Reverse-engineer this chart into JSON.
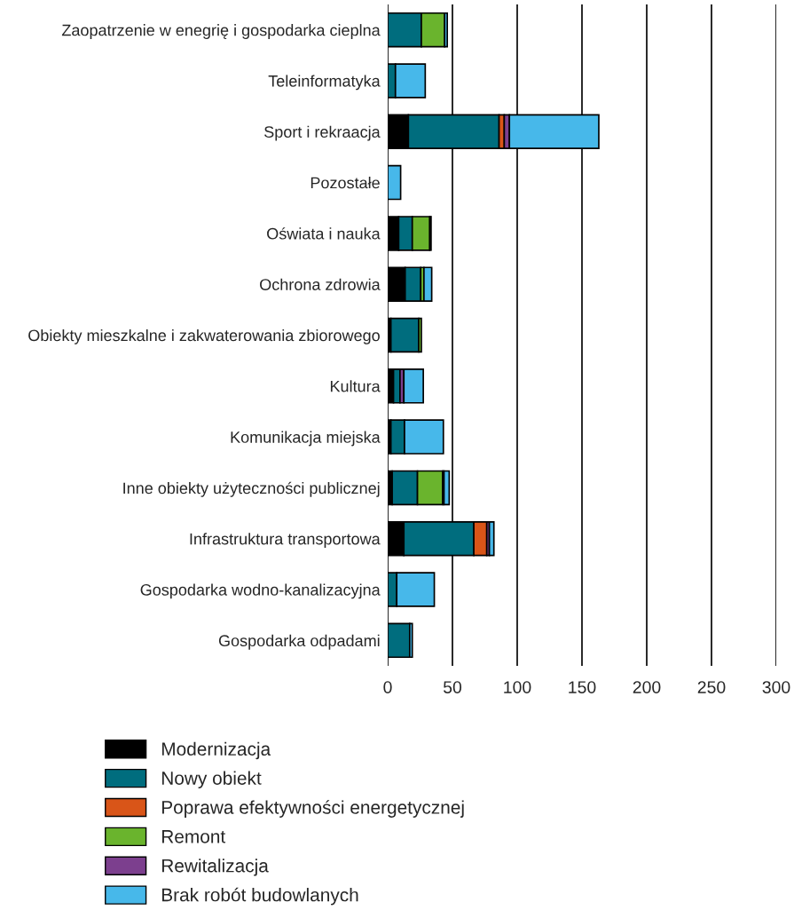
{
  "chart_data": {
    "type": "bar",
    "orientation": "horizontal",
    "stacked": true,
    "categories": [
      "Zaopatrzenie w enegrię i gospodarka cieplna",
      "Teleinformatyka",
      "Sport i rekraacja",
      "Pozostałe",
      "Oświata i nauka",
      "Ochrona zdrowia",
      "Obiekty mieszkalne i zakwaterowania zbiorowego",
      "Kultura",
      "Komunikacja miejska",
      "Inne obiekty użyteczności publicznej",
      "Infrastruktura transportowa",
      "Gospodarka wodno-kanalizacyjna",
      "Gospodarka odpadami"
    ],
    "series": [
      {
        "name": "Modernizacja",
        "color": "#000000",
        "values": [
          null,
          null,
          16,
          null,
          8.5,
          13.5,
          2.5,
          4.5,
          2.5,
          3.5,
          12.5,
          null,
          null
        ]
      },
      {
        "name": "Nowy obiekt",
        "color": "#006d7e",
        "values": [
          26,
          6,
          70,
          null,
          10.5,
          12,
          21.5,
          5,
          10.5,
          19.5,
          54,
          7,
          17
        ]
      },
      {
        "name": "Poprawa efektywności energetycznej",
        "color": "#d95518",
        "values": [
          null,
          null,
          4,
          null,
          null,
          null,
          null,
          null,
          null,
          null,
          10,
          null,
          null
        ]
      },
      {
        "name": "Remont",
        "color": "#6ab42d",
        "values": [
          18,
          null,
          null,
          null,
          13.5,
          2.5,
          2,
          null,
          null,
          19.5,
          null,
          null,
          null
        ]
      },
      {
        "name": "Rewitalizacja",
        "color": "#7c3f8e",
        "values": [
          null,
          null,
          4,
          null,
          null,
          null,
          null,
          3,
          null,
          1,
          2,
          null,
          null
        ]
      },
      {
        "name": "Brak robót budowlanych",
        "color": "#47b8ea",
        "values": [
          2,
          23,
          69,
          10,
          1,
          6,
          null,
          15,
          30,
          4,
          3.5,
          29,
          2
        ]
      }
    ],
    "xlim": [
      0,
      300
    ],
    "xticks": [
      0,
      50,
      100,
      150,
      200,
      250,
      300
    ],
    "grid": "x",
    "legend": "bottom left"
  }
}
